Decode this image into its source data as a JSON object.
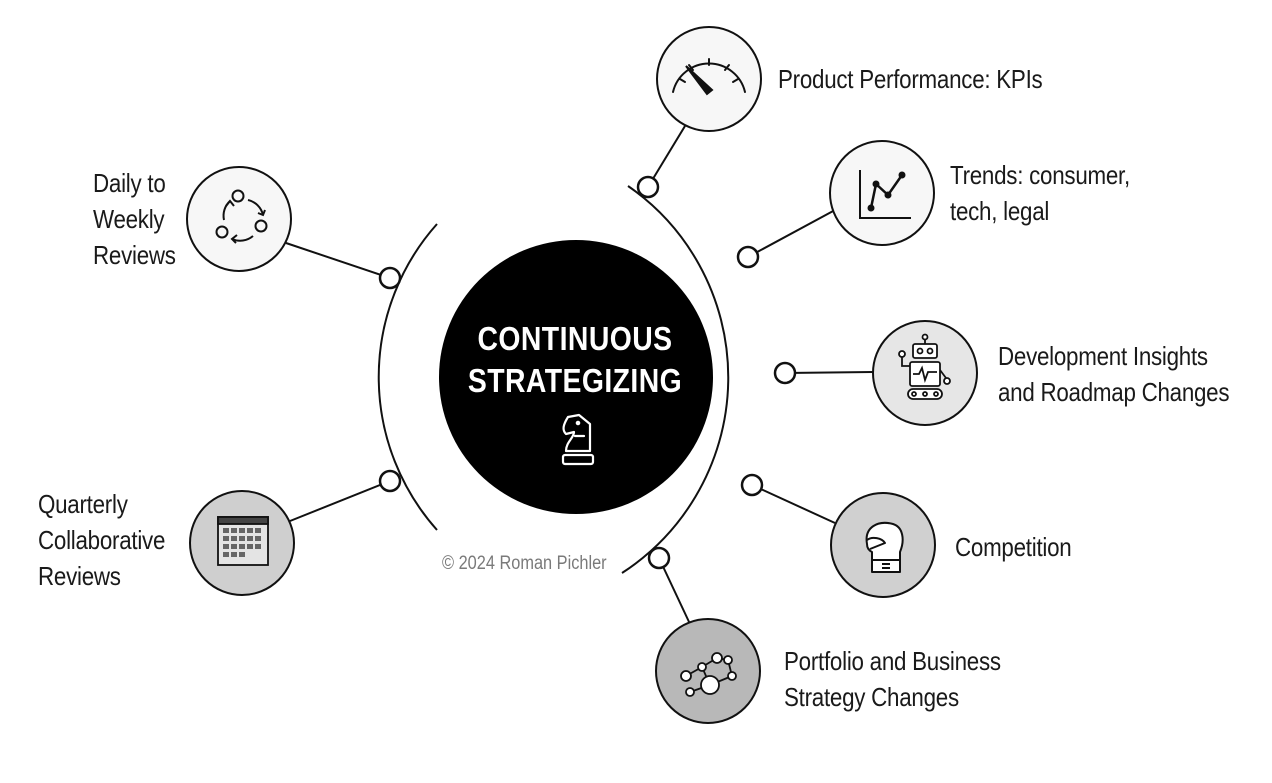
{
  "center": {
    "lines": [
      "CONTINUOUS",
      "STRATEGIZING"
    ],
    "icon": "chess-knight-icon"
  },
  "copyright": "© 2024 Roman Pichler",
  "left_nodes": [
    {
      "lines": [
        "Daily to",
        "Weekly",
        "Reviews"
      ],
      "icon": "cycle-arrows-icon"
    },
    {
      "lines": [
        "Quarterly",
        "Collaborative",
        "Reviews"
      ],
      "icon": "calendar-icon"
    }
  ],
  "right_nodes": [
    {
      "lines": [
        "Product Performance: KPIs"
      ],
      "icon": "gauge-icon"
    },
    {
      "lines": [
        "Trends: consumer,",
        "tech, legal"
      ],
      "icon": "line-chart-icon"
    },
    {
      "lines": [
        "Development Insights",
        "and Roadmap Changes"
      ],
      "icon": "robot-icon"
    },
    {
      "lines": [
        "Competition"
      ],
      "icon": "boxing-glove-icon"
    },
    {
      "lines": [
        "Portfolio and Business",
        "Strategy Changes"
      ],
      "icon": "network-icon"
    }
  ]
}
